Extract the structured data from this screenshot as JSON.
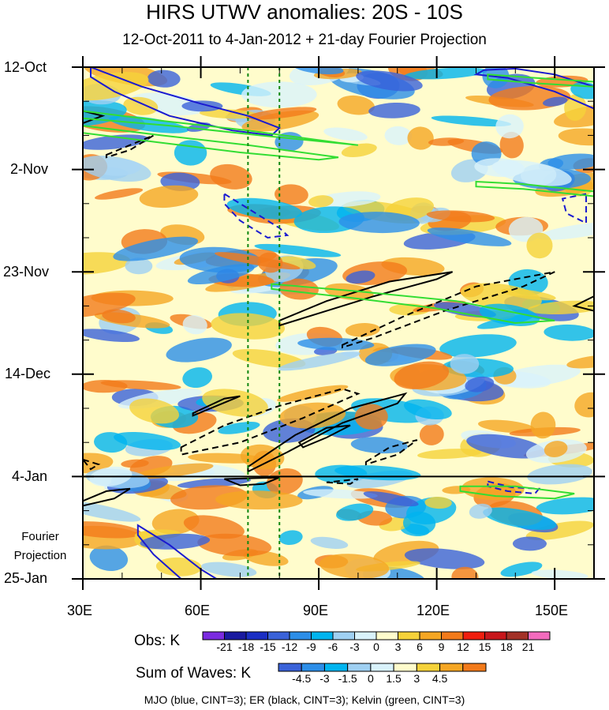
{
  "chart_data": {
    "type": "heatmap",
    "title": "HIRS UTWV anomalies: 20S - 10S",
    "subtitle": "12-Oct-2011 to 4-Jan-2012 + 21-day Fourier Projection",
    "x_ticks": [
      "30E",
      "60E",
      "90E",
      "120E",
      "150E"
    ],
    "x_tick_values": [
      30,
      60,
      90,
      120,
      150
    ],
    "xlim": [
      30,
      160
    ],
    "y_ticks": [
      "12-Oct",
      "2-Nov",
      "23-Nov",
      "14-Dec",
      "4-Jan",
      "25-Jan"
    ],
    "y_tick_days": [
      0,
      21,
      42,
      63,
      84,
      105
    ],
    "ylim_days": [
      0,
      105
    ],
    "projection_label": "Fourier Projection",
    "projection_start_day": 84,
    "reference_lons": [
      72,
      80
    ],
    "obs_colorbar": {
      "label": "Obs: K",
      "levels": [
        "-21",
        "-18",
        "-15",
        "-12",
        "-9",
        "-6",
        "-3",
        "0",
        "3",
        "6",
        "9",
        "12",
        "15",
        "18",
        "21"
      ],
      "colors": [
        "#7b2be0",
        "#1a1aa0",
        "#1b2fc4",
        "#3a62d9",
        "#2c8ee8",
        "#00b4ef",
        "#9fd0f2",
        "#d9f2fb",
        "#fffccc",
        "#f5d23a",
        "#f5a623",
        "#f27a1a",
        "#f01e0e",
        "#c8161b",
        "#a33127",
        "#f36bbd"
      ]
    },
    "waves_colorbar": {
      "label": "Sum of Waves: K",
      "levels": [
        "-4.5",
        "-3",
        "-1.5",
        "0",
        "1.5",
        "3",
        "4.5"
      ],
      "colors": [
        "#3a62d9",
        "#2c8ee8",
        "#00b4ef",
        "#9fd0f2",
        "#d9f2fb",
        "#fffccc",
        "#f5d23a",
        "#f5a623",
        "#f27a1a"
      ]
    },
    "contour_legend": "MJO (blue, CINT=3); ER (black, CINT=3); Kelvin (green, CINT=3)",
    "contours": [
      {
        "wave": "MJO",
        "color": "#1a1ad0",
        "dashed": false,
        "points": [
          [
            32,
            0
          ],
          [
            45,
            4
          ],
          [
            60,
            7.5
          ],
          [
            72,
            10
          ],
          [
            80,
            12.5
          ],
          [
            78,
            14
          ],
          [
            68,
            13
          ],
          [
            52,
            10
          ],
          [
            38,
            5
          ],
          [
            32,
            2
          ]
        ]
      },
      {
        "wave": "MJO",
        "color": "#1a1ad0",
        "dashed": false,
        "points": [
          [
            130,
            1.5
          ],
          [
            138,
            2.2
          ],
          [
            150,
            5
          ],
          [
            160,
            8.5
          ],
          [
            160,
            4
          ],
          [
            150,
            1.5
          ],
          [
            140,
            0.3
          ],
          [
            132,
            0.6
          ]
        ]
      },
      {
        "wave": "MJO",
        "color": "#1a1ad0",
        "dashed": false,
        "points": [
          [
            44,
            94
          ],
          [
            52,
            98
          ],
          [
            60,
            103
          ],
          [
            64,
            105
          ],
          [
            55,
            105
          ],
          [
            48,
            100
          ],
          [
            44,
            96
          ]
        ]
      },
      {
        "wave": "MJO",
        "color": "#1a1ad0",
        "dashed": true,
        "points": [
          [
            66,
            26
          ],
          [
            72,
            29
          ],
          [
            80,
            33
          ],
          [
            82,
            34.5
          ],
          [
            77,
            35
          ],
          [
            70,
            31.5
          ],
          [
            66,
            28
          ]
        ]
      },
      {
        "wave": "MJO",
        "color": "#1a1ad0",
        "dashed": true,
        "points": [
          [
            158,
            26
          ],
          [
            152,
            27
          ],
          [
            153,
            30
          ],
          [
            158,
            32
          ]
        ]
      },
      {
        "wave": "MJO",
        "color": "#1a1ad0",
        "dashed": true,
        "points": [
          [
            133,
            85
          ],
          [
            139,
            86.2
          ],
          [
            146,
            86.5
          ],
          [
            145,
            87.5
          ],
          [
            138,
            87
          ],
          [
            133,
            86
          ]
        ]
      },
      {
        "wave": "ER",
        "color": "#000000",
        "dashed": false,
        "points": [
          [
            30,
            9
          ],
          [
            35,
            10
          ],
          [
            30,
            11.5
          ]
        ]
      },
      {
        "wave": "ER",
        "color": "#000000",
        "dashed": false,
        "points": [
          [
            80,
            52
          ],
          [
            92,
            48
          ],
          [
            108,
            44
          ],
          [
            124,
            42
          ],
          [
            120,
            43.5
          ],
          [
            104,
            47
          ],
          [
            90,
            50.5
          ],
          [
            80,
            53
          ]
        ]
      },
      {
        "wave": "ER",
        "color": "#000000",
        "dashed": false,
        "points": [
          [
            58,
            71
          ],
          [
            66,
            68
          ],
          [
            70,
            67.5
          ],
          [
            64,
            69.5
          ],
          [
            58,
            71.5
          ]
        ]
      },
      {
        "wave": "ER",
        "color": "#000000",
        "dashed": false,
        "points": [
          [
            72,
            82
          ],
          [
            84,
            75.5
          ],
          [
            98,
            70
          ],
          [
            112,
            67
          ],
          [
            110,
            69
          ],
          [
            96,
            73
          ],
          [
            82,
            79
          ],
          [
            72,
            83
          ]
        ]
      },
      {
        "wave": "ER",
        "color": "#000000",
        "dashed": false,
        "points": [
          [
            85,
            77
          ],
          [
            92,
            74
          ],
          [
            98,
            73.5
          ],
          [
            92,
            76
          ],
          [
            86,
            78
          ]
        ]
      },
      {
        "wave": "ER",
        "color": "#000000",
        "dashed": false,
        "points": [
          [
            30,
            89
          ],
          [
            36,
            87
          ],
          [
            42,
            86.5
          ],
          [
            38,
            88.5
          ],
          [
            30,
            90
          ]
        ]
      },
      {
        "wave": "ER",
        "color": "#000000",
        "dashed": false,
        "points": [
          [
            66,
            84.5
          ],
          [
            70,
            85.8
          ],
          [
            76,
            85.5
          ],
          [
            80,
            84.2
          ]
        ]
      },
      {
        "wave": "ER",
        "color": "#000000",
        "dashed": true,
        "points": [
          [
            36,
            18
          ],
          [
            42,
            16
          ],
          [
            48,
            14
          ],
          [
            42,
            17
          ],
          [
            36,
            18.5
          ]
        ]
      },
      {
        "wave": "ER",
        "color": "#000000",
        "dashed": true,
        "points": [
          [
            96,
            57
          ],
          [
            112,
            51
          ],
          [
            130,
            45
          ],
          [
            150,
            42
          ],
          [
            142,
            45
          ],
          [
            122,
            50
          ],
          [
            104,
            55.5
          ],
          [
            96,
            57.5
          ]
        ]
      },
      {
        "wave": "ER",
        "color": "#000000",
        "dashed": true,
        "points": [
          [
            55,
            78
          ],
          [
            66,
            73.5
          ],
          [
            80,
            69.5
          ],
          [
            96,
            66
          ],
          [
            100,
            67
          ],
          [
            86,
            72
          ],
          [
            70,
            77
          ],
          [
            55,
            79.5
          ]
        ]
      },
      {
        "wave": "ER",
        "color": "#000000",
        "dashed": true,
        "points": [
          [
            102,
            81
          ],
          [
            108,
            78
          ],
          [
            115,
            76.5
          ],
          [
            110,
            79.5
          ],
          [
            102,
            81.5
          ]
        ]
      },
      {
        "wave": "ER",
        "color": "#000000",
        "dashed": true,
        "points": [
          [
            30,
            80.5
          ],
          [
            34,
            81.5
          ],
          [
            32,
            82.5
          ]
        ]
      },
      {
        "wave": "ER",
        "color": "#000000",
        "dashed": true,
        "points": [
          [
            92,
            85.2
          ],
          [
            98,
            85.5
          ],
          [
            100,
            84.5
          ]
        ]
      },
      {
        "wave": "ER",
        "color": "#000000",
        "dashed": false,
        "points": [
          [
            155,
            49
          ],
          [
            160,
            47
          ],
          [
            160,
            50
          ]
        ]
      },
      {
        "wave": "Kelvin",
        "color": "#33dd33",
        "dashed": false,
        "points": [
          [
            30,
            9
          ],
          [
            50,
            11
          ],
          [
            72,
            13
          ],
          [
            95,
            15.5
          ],
          [
            100,
            16
          ],
          [
            75,
            14
          ],
          [
            52,
            12
          ],
          [
            30,
            10.5
          ]
        ]
      },
      {
        "wave": "Kelvin",
        "color": "#33dd33",
        "dashed": false,
        "points": [
          [
            30,
            12
          ],
          [
            50,
            14
          ],
          [
            72,
            16
          ],
          [
            95,
            18.5
          ],
          [
            90,
            19
          ],
          [
            70,
            17.5
          ],
          [
            50,
            15.5
          ],
          [
            30,
            13.5
          ]
        ]
      },
      {
        "wave": "Kelvin",
        "color": "#33dd33",
        "dashed": false,
        "points": [
          [
            78,
            44.5
          ],
          [
            100,
            46
          ],
          [
            125,
            48
          ],
          [
            150,
            52
          ],
          [
            140,
            52.5
          ],
          [
            120,
            49.5
          ],
          [
            100,
            47.5
          ],
          [
            78,
            45.5
          ]
        ]
      },
      {
        "wave": "Kelvin",
        "color": "#33dd33",
        "dashed": false,
        "points": [
          [
            133,
            1.5
          ],
          [
            145,
            2.2
          ],
          [
            160,
            3
          ],
          [
            160,
            4
          ],
          [
            145,
            3.3
          ],
          [
            133,
            2.5
          ]
        ]
      },
      {
        "wave": "Kelvin",
        "color": "#33dd33",
        "dashed": false,
        "points": [
          [
            130,
            23.5
          ],
          [
            142,
            24
          ],
          [
            160,
            25.5
          ],
          [
            160,
            26.5
          ],
          [
            142,
            25
          ],
          [
            130,
            24.5
          ]
        ]
      },
      {
        "wave": "Kelvin",
        "color": "#33dd33",
        "dashed": false,
        "points": [
          [
            126,
            86
          ],
          [
            140,
            86
          ],
          [
            155,
            87.5
          ],
          [
            150,
            88.5
          ],
          [
            135,
            88
          ],
          [
            126,
            87
          ]
        ]
      }
    ]
  }
}
